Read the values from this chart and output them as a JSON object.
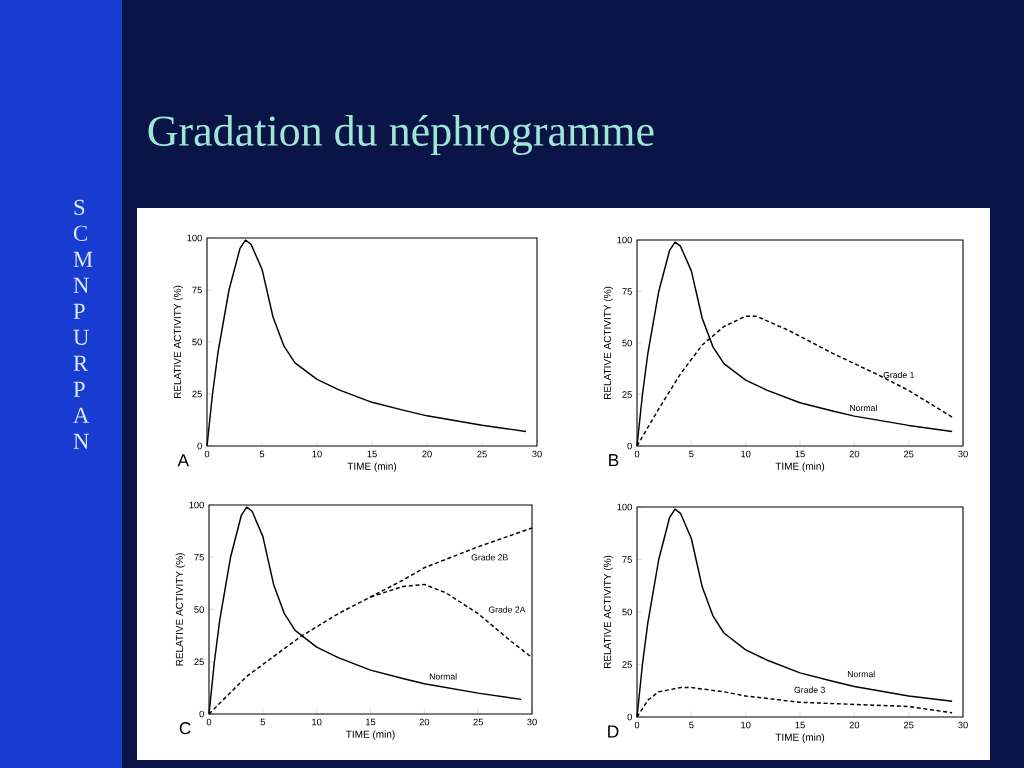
{
  "chart_data": [
    {
      "type": "line",
      "title": "Gradation du néphrogramme",
      "xlabel": "TIME (min)",
      "ylabel": "RELATIVE ACTIVITY (%)",
      "xlim": [
        0,
        30
      ],
      "ylim": [
        0,
        100
      ],
      "xticks": [
        0,
        5,
        10,
        15,
        20,
        25,
        30
      ],
      "yticks": [
        0,
        25,
        50,
        75,
        100
      ],
      "annotations": [
        "A",
        "SCMN PURPAN"
      ],
      "series": [
        {
          "color": "#000000",
          "line_style": "solid",
          "x": [
            0,
            0.5,
            1,
            2,
            3,
            3.5,
            4,
            5,
            6,
            7,
            8,
            10,
            12,
            15,
            18,
            20,
            25,
            29
          ],
          "values": [
            0,
            25,
            45,
            75,
            95,
            99,
            97,
            85,
            62,
            48,
            40,
            32,
            27,
            21,
            17,
            14.5,
            10,
            7
          ]
        }
      ]
    },
    {
      "type": "line",
      "xlabel": "TIME (min)",
      "ylabel": "RELATIVE ACTIVITY (%)",
      "xlim": [
        0,
        30
      ],
      "ylim": [
        0,
        100
      ],
      "xticks": [
        0,
        5,
        10,
        15,
        20,
        25,
        30
      ],
      "yticks": [
        0,
        25,
        50,
        75,
        100
      ],
      "annotations": [
        "B"
      ],
      "series": [
        {
          "name": "Normal",
          "color": "#000000",
          "line_style": "solid",
          "x": [
            0,
            0.5,
            1,
            2,
            3,
            3.5,
            4,
            5,
            6,
            7,
            8,
            10,
            12,
            15,
            18,
            20,
            25,
            29
          ],
          "values": [
            0,
            25,
            45,
            75,
            95,
            99,
            97,
            85,
            62,
            48,
            40,
            32,
            27,
            21,
            17,
            14.5,
            10,
            7
          ]
        },
        {
          "name": "Grade 1",
          "color": "#000000",
          "line_style": "dashed",
          "x": [
            0,
            2,
            4,
            6,
            8,
            10,
            11,
            14,
            18,
            22,
            25,
            29
          ],
          "values": [
            0,
            18,
            35,
            49,
            58,
            63,
            63,
            56,
            45,
            35,
            27,
            14
          ]
        }
      ]
    },
    {
      "type": "line",
      "xlabel": "TIME (min)",
      "ylabel": "RELATIVE ACTIVITY (%)",
      "xlim": [
        0,
        30
      ],
      "ylim": [
        0,
        100
      ],
      "xticks": [
        0,
        5,
        10,
        15,
        20,
        25,
        30
      ],
      "yticks": [
        0,
        25,
        50,
        75,
        100
      ],
      "annotations": [
        "C"
      ],
      "series": [
        {
          "name": "Normal",
          "color": "#000000",
          "line_style": "solid",
          "x": [
            0,
            0.5,
            1,
            2,
            3,
            3.5,
            4,
            5,
            6,
            7,
            8,
            10,
            12,
            15,
            18,
            20,
            25,
            29
          ],
          "values": [
            0,
            25,
            45,
            75,
            95,
            99,
            97,
            85,
            62,
            48,
            40,
            32,
            27,
            21,
            17,
            14.5,
            10,
            7
          ]
        },
        {
          "name": "Grade 2B",
          "color": "#000000",
          "line_style": "dashed",
          "x": [
            0,
            3.5,
            8.5,
            12,
            15,
            18,
            20,
            25,
            30
          ],
          "values": [
            0,
            18,
            37,
            48,
            56,
            64,
            70,
            80,
            89
          ]
        },
        {
          "name": "Grade 2A",
          "color": "#000000",
          "line_style": "dashed",
          "x": [
            15,
            18,
            20,
            22,
            25,
            28,
            30
          ],
          "values": [
            56,
            61,
            62,
            58,
            48,
            35,
            27
          ]
        }
      ]
    },
    {
      "type": "line",
      "xlabel": "TIME (min)",
      "ylabel": "RELATIVE ACTIVITY (%)",
      "xlim": [
        0,
        30
      ],
      "ylim": [
        0,
        100
      ],
      "xticks": [
        0,
        5,
        10,
        15,
        20,
        25,
        30
      ],
      "yticks": [
        0,
        25,
        50,
        75,
        100
      ],
      "annotations": [
        "D"
      ],
      "series": [
        {
          "name": "Normal",
          "color": "#000000",
          "line_style": "solid",
          "x": [
            0,
            0.5,
            1,
            2,
            3,
            3.5,
            4,
            5,
            6,
            7,
            8,
            10,
            12,
            15,
            18,
            20,
            25,
            29
          ],
          "values": [
            0,
            25,
            45,
            75,
            95,
            99,
            97,
            85,
            62,
            48,
            40,
            32,
            27,
            21,
            17,
            14.5,
            10,
            7.5
          ]
        },
        {
          "name": "Grade 3",
          "color": "#000000",
          "line_style": "dashed",
          "x": [
            0,
            1,
            2,
            4,
            5,
            8,
            10,
            15,
            20,
            25,
            29
          ],
          "values": [
            0,
            8,
            12,
            14,
            14,
            12,
            10,
            7,
            6,
            5,
            2
          ]
        }
      ]
    }
  ]
}
